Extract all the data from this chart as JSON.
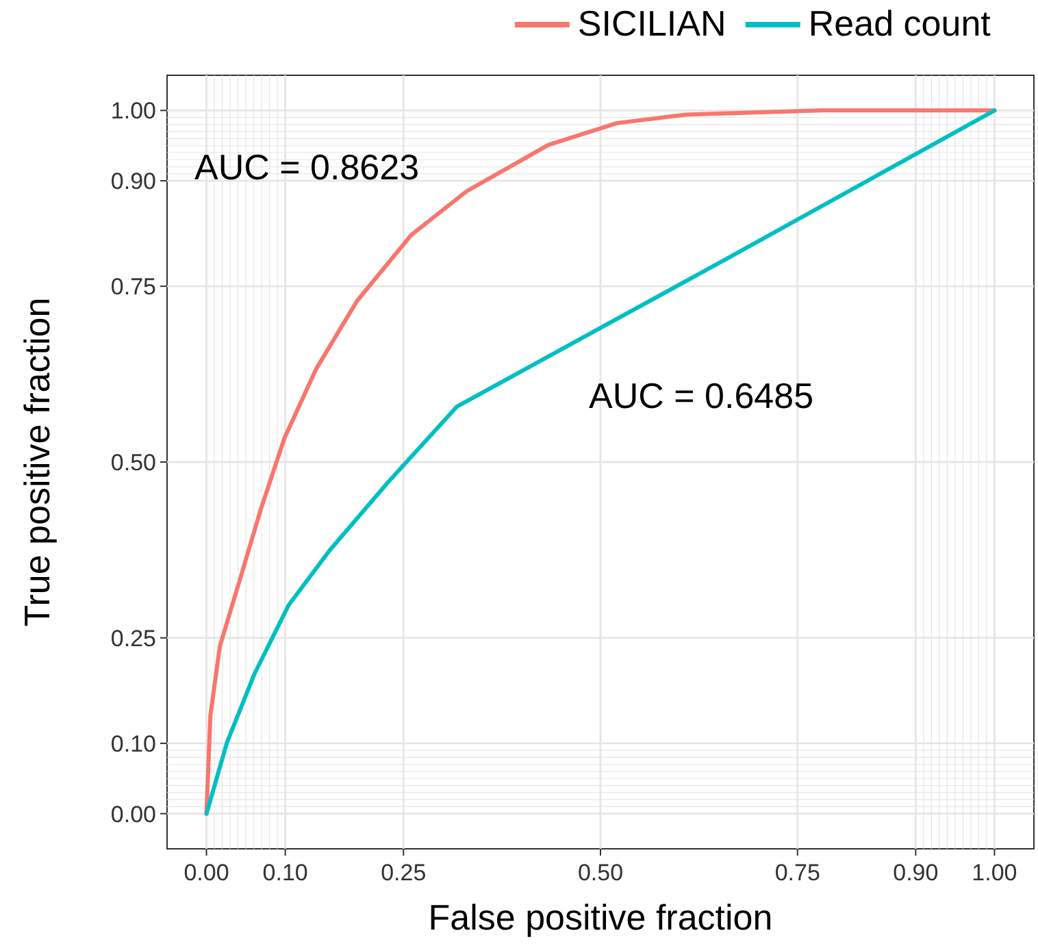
{
  "chart_data": {
    "type": "line",
    "xlabel": "False positive fraction",
    "ylabel": "True positive fraction",
    "xlim": [
      -0.05,
      1.05
    ],
    "ylim": [
      -0.05,
      1.05
    ],
    "xticks": [
      {
        "value": 0,
        "label": "0.00"
      },
      {
        "value": 0.1,
        "label": "0.10"
      },
      0.25,
      {
        "value": 0.5,
        "label": "0.50"
      },
      0.75,
      {
        "value": 0.9,
        "label": "0.90"
      },
      {
        "value": 1,
        "label": "1.00"
      },
      {
        "value": 0.01,
        "label": null
      },
      {
        "value": 0.02,
        "label": null
      },
      {
        "value": 0.03,
        "label": null
      },
      {
        "value": 0.04,
        "label": null
      },
      {
        "value": 0.05,
        "label": null
      },
      {
        "value": 0.06,
        "label": null
      },
      {
        "value": 0.07,
        "label": null
      },
      {
        "value": 0.08,
        "label": null
      },
      {
        "value": 0.09,
        "label": null
      },
      {
        "value": 0.91,
        "label": null
      },
      {
        "value": 0.92,
        "label": null
      },
      {
        "value": 0.93,
        "label": null
      },
      {
        "value": 0.94,
        "label": null
      },
      {
        "value": 0.95,
        "label": null
      },
      {
        "value": 0.96,
        "label": null
      },
      {
        "value": 0.97,
        "label": null
      },
      {
        "value": 0.98,
        "label": null
      },
      {
        "value": 0.99,
        "label": null
      }
    ],
    "yticks": [
      {
        "value": 0,
        "label": "0.00"
      },
      {
        "value": 0.1,
        "label": "0.10"
      },
      0.25,
      {
        "value": 0.5,
        "label": "0.50"
      },
      0.75,
      {
        "value": 0.9,
        "label": "0.90"
      },
      {
        "value": 1,
        "label": "1.00"
      },
      {
        "value": 0.01,
        "label": null
      },
      {
        "value": 0.02,
        "label": null
      },
      {
        "value": 0.03,
        "label": null
      },
      {
        "value": 0.04,
        "label": null
      },
      {
        "value": 0.05,
        "label": null
      },
      {
        "value": 0.06,
        "label": null
      },
      {
        "value": 0.07,
        "label": null
      },
      {
        "value": 0.08,
        "label": null
      },
      {
        "value": 0.09,
        "label": null
      },
      {
        "value": 0.91,
        "label": null
      },
      {
        "value": 0.92,
        "label": null
      },
      {
        "value": 0.93,
        "label": null
      },
      {
        "value": 0.94,
        "label": null
      },
      {
        "value": 0.95,
        "label": null
      },
      {
        "value": 0.96,
        "label": null
      },
      {
        "value": 0.97,
        "label": null
      },
      {
        "value": 0.98,
        "label": null
      },
      {
        "value": 0.99,
        "label": null
      }
    ],
    "grid": true,
    "legend": "top right",
    "line_style": "solid",
    "marker": "none",
    "series": [
      {
        "name": "SICILIAN",
        "color": "#f8766d",
        "x": [
          0,
          0.005,
          0.017,
          0.043,
          0.069,
          0.099,
          0.139,
          0.191,
          0.26,
          0.33,
          0.434,
          0.521,
          0.608,
          0.78,
          1
        ],
        "values": [
          0,
          0.14,
          0.238,
          0.335,
          0.433,
          0.534,
          0.632,
          0.729,
          0.823,
          0.885,
          0.951,
          0.982,
          0.994,
          1,
          1
        ]
      },
      {
        "name": "Read count",
        "color": "#00bfc4",
        "x": [
          0,
          0.026,
          0.061,
          0.104,
          0.156,
          0.231,
          0.318,
          0.66,
          1
        ],
        "values": [
          0,
          0.101,
          0.199,
          0.296,
          0.374,
          0.472,
          0.579,
          0.789,
          1
        ]
      }
    ],
    "annotations": [
      "AUC = 0.8623",
      "AUC = 0.6485"
    ]
  }
}
